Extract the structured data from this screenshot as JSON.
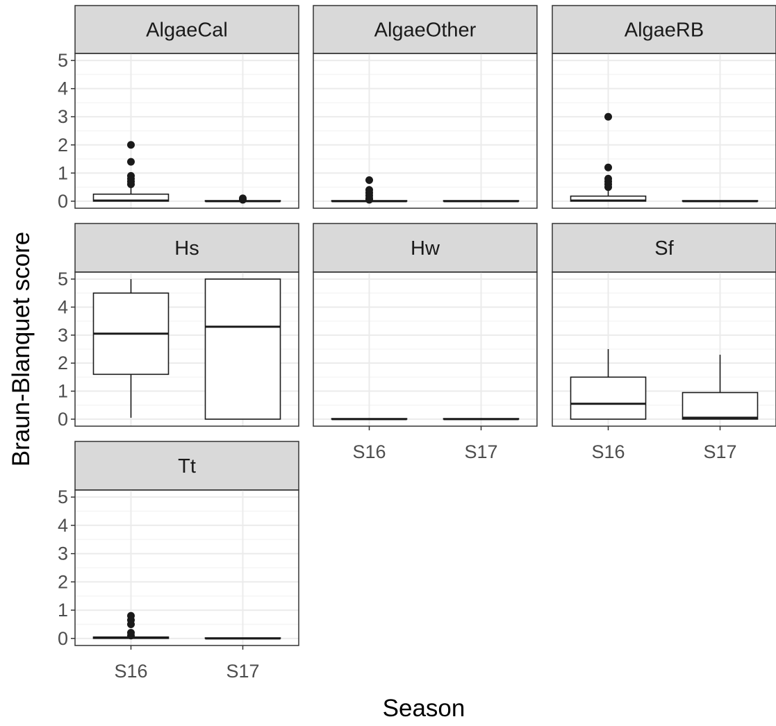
{
  "chart_data": {
    "type": "boxplot",
    "title": "",
    "xlabel": "Season",
    "ylabel": "Braun-Blanquet score",
    "categories": [
      "S16",
      "S17"
    ],
    "ylim": [
      -0.25,
      5.25
    ],
    "yticks": [
      0,
      1,
      2,
      3,
      4,
      5
    ],
    "ytick_labels": [
      "0",
      "1",
      "2",
      "3",
      "4",
      "5"
    ],
    "grid": true,
    "legend": "none",
    "facets": [
      {
        "name": "AlgaeCal",
        "boxes": [
          {
            "category": "S16",
            "min": 0,
            "q1": 0,
            "median": 0.02,
            "q3": 0.25,
            "max": 0.5,
            "outliers": [
              0.6,
              0.7,
              0.8,
              0.9,
              1.4,
              2.0
            ]
          },
          {
            "category": "S17",
            "min": 0,
            "q1": 0,
            "median": 0,
            "q3": 0.02,
            "max": 0.05,
            "outliers": [
              0.05,
              0.1
            ]
          }
        ]
      },
      {
        "name": "AlgaeOther",
        "boxes": [
          {
            "category": "S16",
            "min": 0,
            "q1": 0,
            "median": 0,
            "q3": 0.02,
            "max": 0.05,
            "outliers": [
              0.05,
              0.1,
              0.2,
              0.3,
              0.4,
              0.75
            ]
          },
          {
            "category": "S17",
            "min": 0,
            "q1": 0,
            "median": 0,
            "q3": 0.02,
            "max": 0.02,
            "outliers": []
          }
        ]
      },
      {
        "name": "AlgaeRB",
        "boxes": [
          {
            "category": "S16",
            "min": 0,
            "q1": 0,
            "median": 0.02,
            "q3": 0.18,
            "max": 0.4,
            "outliers": [
              0.5,
              0.6,
              0.7,
              0.8,
              1.2,
              3.0
            ]
          },
          {
            "category": "S17",
            "min": 0,
            "q1": 0,
            "median": 0,
            "q3": 0.02,
            "max": 0.02,
            "outliers": []
          }
        ]
      },
      {
        "name": "Hs",
        "boxes": [
          {
            "category": "S16",
            "min": 0.05,
            "q1": 1.6,
            "median": 3.05,
            "q3": 4.5,
            "max": 5.0,
            "outliers": []
          },
          {
            "category": "S17",
            "min": 0,
            "q1": 0,
            "median": 3.3,
            "q3": 5.0,
            "max": 5.0,
            "outliers": []
          }
        ]
      },
      {
        "name": "Hw",
        "boxes": [
          {
            "category": "S16",
            "min": 0,
            "q1": 0,
            "median": 0,
            "q3": 0.02,
            "max": 0.02,
            "outliers": []
          },
          {
            "category": "S17",
            "min": 0,
            "q1": 0,
            "median": 0,
            "q3": 0.02,
            "max": 0.02,
            "outliers": []
          }
        ]
      },
      {
        "name": "Sf",
        "boxes": [
          {
            "category": "S16",
            "min": 0,
            "q1": 0,
            "median": 0.55,
            "q3": 1.5,
            "max": 2.5,
            "outliers": []
          },
          {
            "category": "S17",
            "min": 0,
            "q1": 0,
            "median": 0.05,
            "q3": 0.95,
            "max": 2.3,
            "outliers": []
          }
        ]
      },
      {
        "name": "Tt",
        "boxes": [
          {
            "category": "S16",
            "min": 0,
            "q1": 0,
            "median": 0.02,
            "q3": 0.05,
            "max": 0.05,
            "outliers": [
              0.1,
              0.2,
              0.5,
              0.65,
              0.8
            ]
          },
          {
            "category": "S17",
            "min": 0,
            "q1": 0,
            "median": 0,
            "q3": 0.02,
            "max": 0.02,
            "outliers": []
          }
        ]
      }
    ]
  },
  "colors": {
    "strip_fill": "#d9d9d9",
    "panel_border": "#333333",
    "grid_major": "#ebebeb",
    "grid_minor": "#f5f5f5",
    "box_stroke": "#1a1a1a",
    "box_fill": "#ffffff",
    "outlier": "#1a1a1a"
  }
}
